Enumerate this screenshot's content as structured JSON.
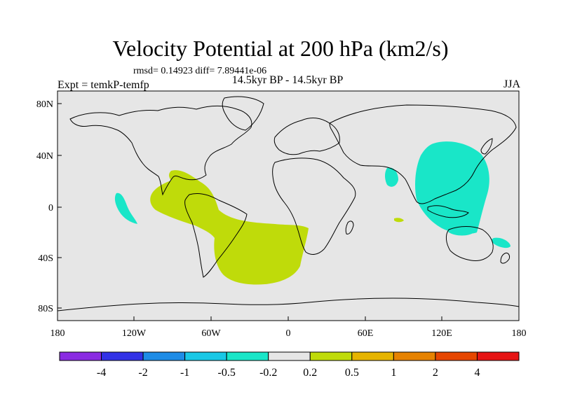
{
  "title": "Velocity Potential at 200 hPa (km2/s)",
  "stats": "rmsd= 0.14923 diff= 7.89441e-06",
  "period": "14.5kyr BP - 14.5kyr BP",
  "experiment": "Expt = temkP-temfp",
  "season": "JJA",
  "map": {
    "land_color": "#e6e6e6",
    "coast_color": "#000000",
    "lat_range": [
      -90,
      90
    ],
    "lon_range": [
      -180,
      180
    ],
    "y_ticks": [
      "80N",
      "40N",
      "0",
      "40S",
      "80S"
    ],
    "x_ticks": [
      "180",
      "120W",
      "60W",
      "0",
      "60E",
      "120E",
      "180"
    ]
  },
  "anomalies": [
    {
      "name": "western-pacific-negative",
      "sign": "negative",
      "color": "#19e6c8"
    },
    {
      "name": "south-america-atlantic-positive",
      "sign": "positive",
      "color": "#bfdb0a"
    }
  ],
  "colorbar": {
    "colors": [
      "#8a2be2",
      "#3232e6",
      "#1e8ce6",
      "#19c8e6",
      "#19e6c8",
      "#e6e6e6",
      "#bfdb0a",
      "#e6b400",
      "#e68200",
      "#e64600",
      "#e61414"
    ],
    "labels": [
      "-4",
      "-2",
      "-1",
      "-0.5",
      "-0.2",
      "0.2",
      "0.5",
      "1",
      "2",
      "4"
    ]
  }
}
